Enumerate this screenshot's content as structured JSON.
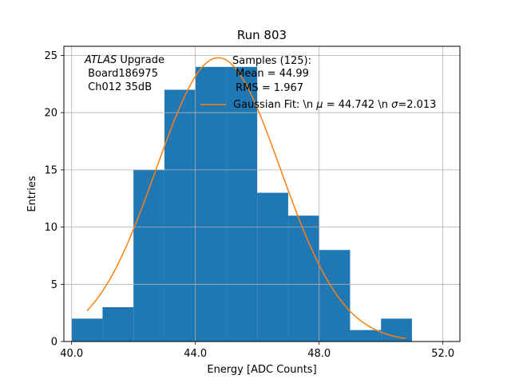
{
  "chart_data": {
    "type": "bar",
    "title": "Run 803",
    "xlabel": "Energy [ADC Counts]",
    "ylabel": "Entries",
    "xlim": [
      39.75,
      52.55
    ],
    "ylim": [
      0,
      25.8
    ],
    "grid": true,
    "xticks": [
      40.0,
      44.0,
      48.0,
      52.0
    ],
    "xtick_labels": [
      "40.0",
      "44.0",
      "48.0",
      "52.0"
    ],
    "yticks": [
      0,
      5,
      10,
      15,
      20,
      25
    ],
    "ytick_labels": [
      "0",
      "5",
      "10",
      "15",
      "20",
      "25"
    ],
    "histogram": {
      "bin_edges": [
        40.0,
        41.0,
        42.0,
        43.0,
        44.0,
        45.0,
        46.0,
        47.0,
        48.0,
        49.0,
        50.0,
        51.0
      ],
      "counts": [
        2,
        3,
        15,
        22,
        24,
        24,
        13,
        11,
        8,
        1,
        2
      ],
      "color": "#1f77b4"
    },
    "fit": {
      "name": "Gaussian Fit: \\n $\\mu$ = 44.742 \\n $\\sigma$=2.013",
      "mu": 44.742,
      "sigma": 2.013,
      "amplitude": 24.8,
      "x_range": [
        40.5,
        50.8
      ],
      "color": "#ff7f0e"
    },
    "annotations": {
      "atlas_italic": "ATLAS",
      "atlas_rest": " Upgrade",
      "board": " Board186975",
      "channel": " Ch012 35dB"
    },
    "stats": {
      "samples": "Samples (125):",
      "mean": " Mean = 44.99",
      "rms": " RMS = 1.967"
    },
    "legend": {
      "location": "top-right",
      "label_prefix": "Gaussian Fit: \\n ",
      "mu_symbol": "μ",
      "mu_text": " = 44.742 \\n ",
      "sigma_symbol": "σ",
      "sigma_text": "=2.013"
    }
  }
}
